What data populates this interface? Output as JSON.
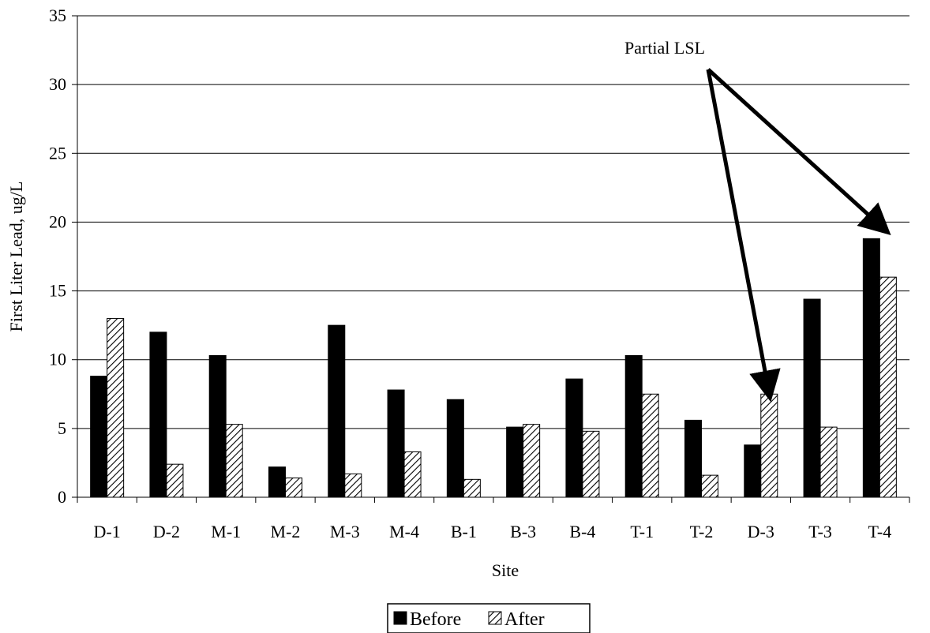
{
  "chart_data": {
    "type": "bar",
    "xlabel": "Site",
    "ylabel": "First Liter Lead, ug/L",
    "ylim": [
      0,
      35
    ],
    "yticks": [
      0,
      5,
      10,
      15,
      20,
      25,
      30,
      35
    ],
    "categories": [
      "D-1",
      "D-2",
      "M-1",
      "M-2",
      "M-3",
      "M-4",
      "B-1",
      "B-3",
      "B-4",
      "T-1",
      "T-2",
      "D-3",
      "T-3",
      "T-4"
    ],
    "series": [
      {
        "name": "Before",
        "values": [
          8.8,
          12.0,
          10.3,
          2.2,
          12.5,
          7.8,
          7.1,
          5.1,
          8.6,
          10.3,
          5.6,
          3.8,
          14.4,
          18.8
        ],
        "fill": "#000000"
      },
      {
        "name": "After",
        "values": [
          13.0,
          2.4,
          5.3,
          1.4,
          1.7,
          3.3,
          1.3,
          5.3,
          4.8,
          7.5,
          1.6,
          7.5,
          5.1,
          16.0
        ],
        "fill": "hatch"
      }
    ],
    "grid": true,
    "legend_position": "bottom",
    "annotations": [
      {
        "text": "Partial LSL",
        "points_to": [
          "D-3",
          "T-4"
        ]
      }
    ]
  }
}
